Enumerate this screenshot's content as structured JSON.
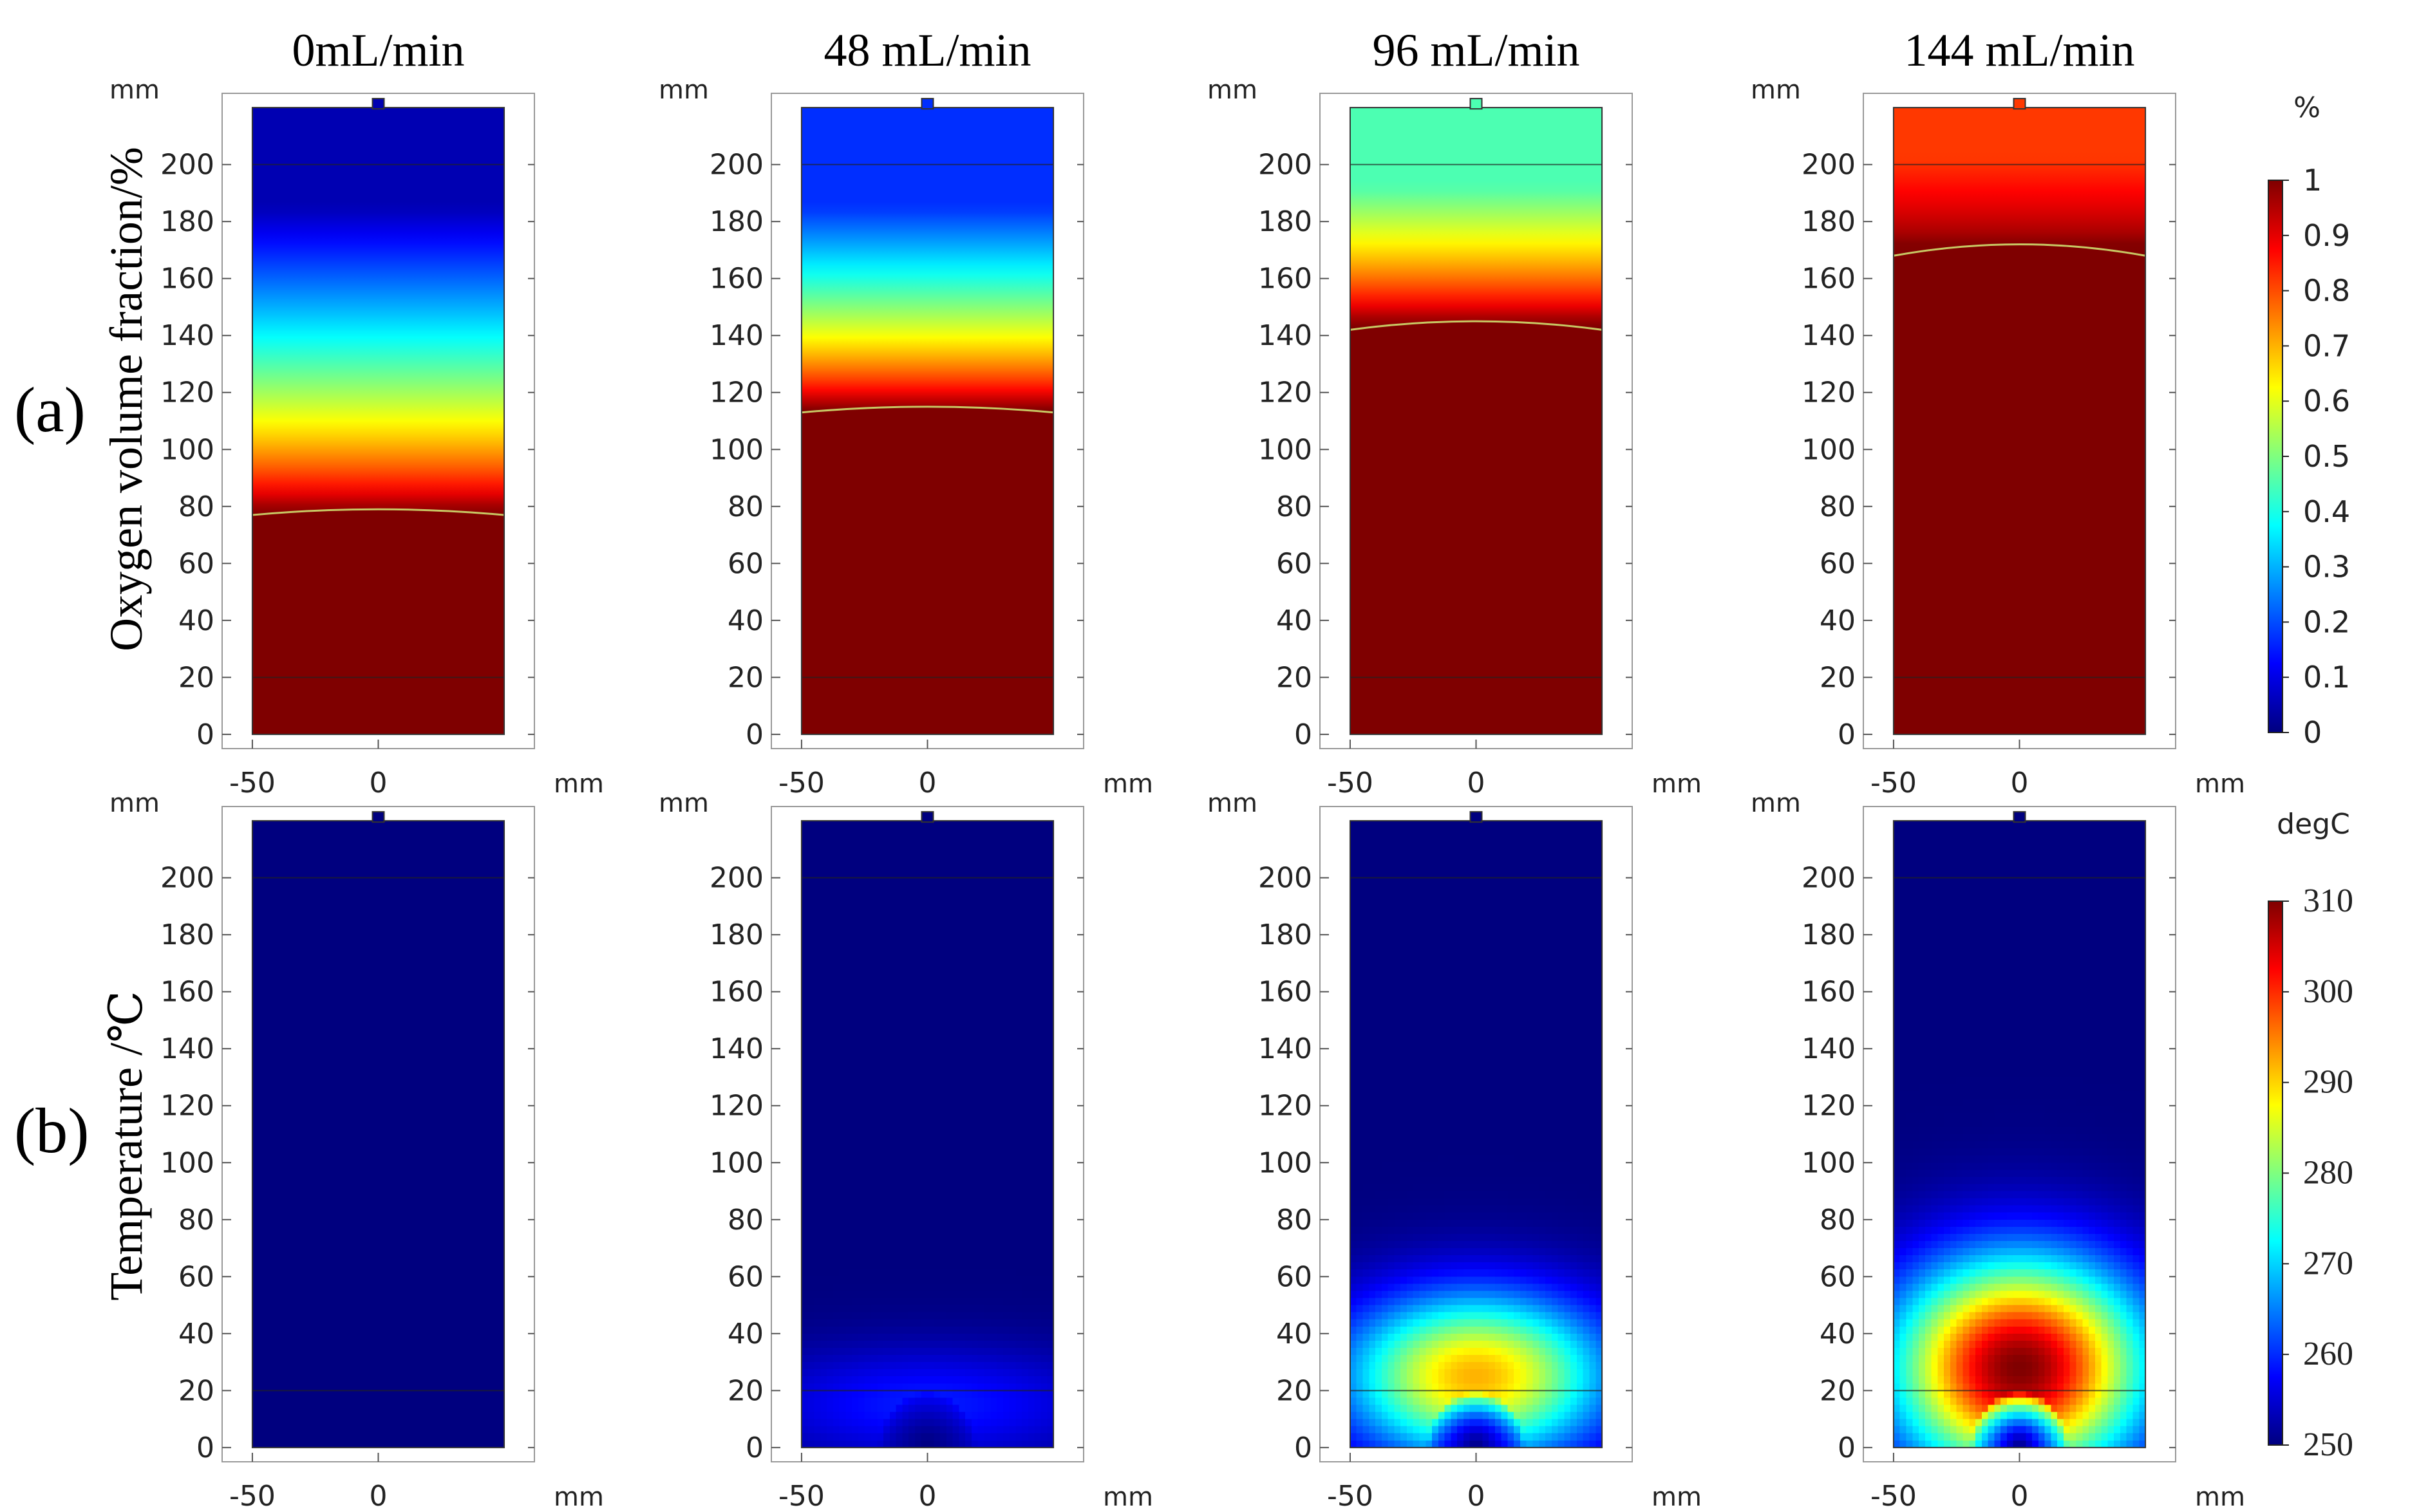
{
  "chart_data": {
    "type": "heatmap",
    "panel_titles": [
      "0mL/min",
      "48 mL/min",
      "96 mL/min",
      "144 mL/min"
    ],
    "row_labels": [
      "(a)",
      "(b)"
    ],
    "row_ylabels": [
      "Oxygen volume fraction/%",
      "Temperature /℃"
    ],
    "axis_unit": "mm",
    "x_ticks": [
      -50,
      0
    ],
    "y_ticks": [
      0,
      20,
      40,
      60,
      80,
      100,
      120,
      140,
      160,
      180,
      200
    ],
    "xlim": [
      -62,
      62
    ],
    "ylim": [
      -5,
      225
    ],
    "domain": {
      "x": [
        -50,
        50
      ],
      "y": [
        0,
        220
      ],
      "inner_lines_y": [
        20,
        200
      ]
    },
    "colorbars": [
      {
        "label": "%",
        "min": 0,
        "max": 1,
        "ticks": [
          0,
          0.1,
          0.2,
          0.3,
          0.4,
          0.5,
          0.6,
          0.7,
          0.8,
          0.9,
          1
        ],
        "tick_labels": [
          "0",
          "0.1",
          "0.2",
          "0.3",
          "0.4",
          "0.5",
          "0.6",
          "0.7",
          "0.8",
          "0.9",
          "1"
        ]
      },
      {
        "label": "degC",
        "min": 250,
        "max": 310,
        "ticks": [
          250,
          260,
          270,
          280,
          290,
          300,
          310
        ],
        "tick_labels": [
          "250",
          "260",
          "270",
          "280",
          "290",
          "300",
          "310"
        ]
      }
    ],
    "colormap": [
      "#00007f",
      "#0000ff",
      "#007fff",
      "#00ffff",
      "#7fff7f",
      "#ffff00",
      "#ff7f00",
      "#ff0000",
      "#7f0000"
    ],
    "oxygen_fields": [
      {
        "flow": "0mL/min",
        "front_center_mm": 79,
        "front_edge_mm": 77,
        "top_value": 0.05,
        "top_depth_mm": 35
      },
      {
        "flow": "48 mL/min",
        "front_center_mm": 115,
        "front_edge_mm": 113,
        "top_value": 0.17,
        "top_depth_mm": 35
      },
      {
        "flow": "96 mL/min",
        "front_center_mm": 145,
        "front_edge_mm": 142,
        "top_value": 0.45,
        "top_depth_mm": 28
      },
      {
        "flow": "144 mL/min",
        "front_center_mm": 172,
        "front_edge_mm": 168,
        "top_value": 0.82,
        "top_depth_mm": 18
      }
    ],
    "temperature_fields": [
      {
        "flow": "0mL/min",
        "uniform": true,
        "base_degC": 250
      },
      {
        "flow": "48 mL/min",
        "base_degC": 250,
        "hot_zone": {
          "center_y_mm": 15,
          "peak_degC": 259,
          "half_width_mm": 90,
          "half_height_mm": 25
        },
        "cold_spot": {
          "center_y_mm": 0,
          "radius_mm": 12
        }
      },
      {
        "flow": "96 mL/min",
        "base_degC": 250,
        "hot_zone": {
          "center_y_mm": 25,
          "peak_degC": 292,
          "half_width_mm": 65,
          "half_height_mm": 36
        },
        "cold_spot": {
          "center_y_mm": 0,
          "radius_mm": 12
        }
      },
      {
        "flow": "144 mL/min",
        "base_degC": 250,
        "hot_zone": {
          "center_y_mm": 28,
          "peak_degC": 310,
          "half_width_mm": 62,
          "half_height_mm": 47
        },
        "cold_spot": {
          "center_y_mm": 0,
          "radius_mm": 12
        }
      }
    ]
  }
}
